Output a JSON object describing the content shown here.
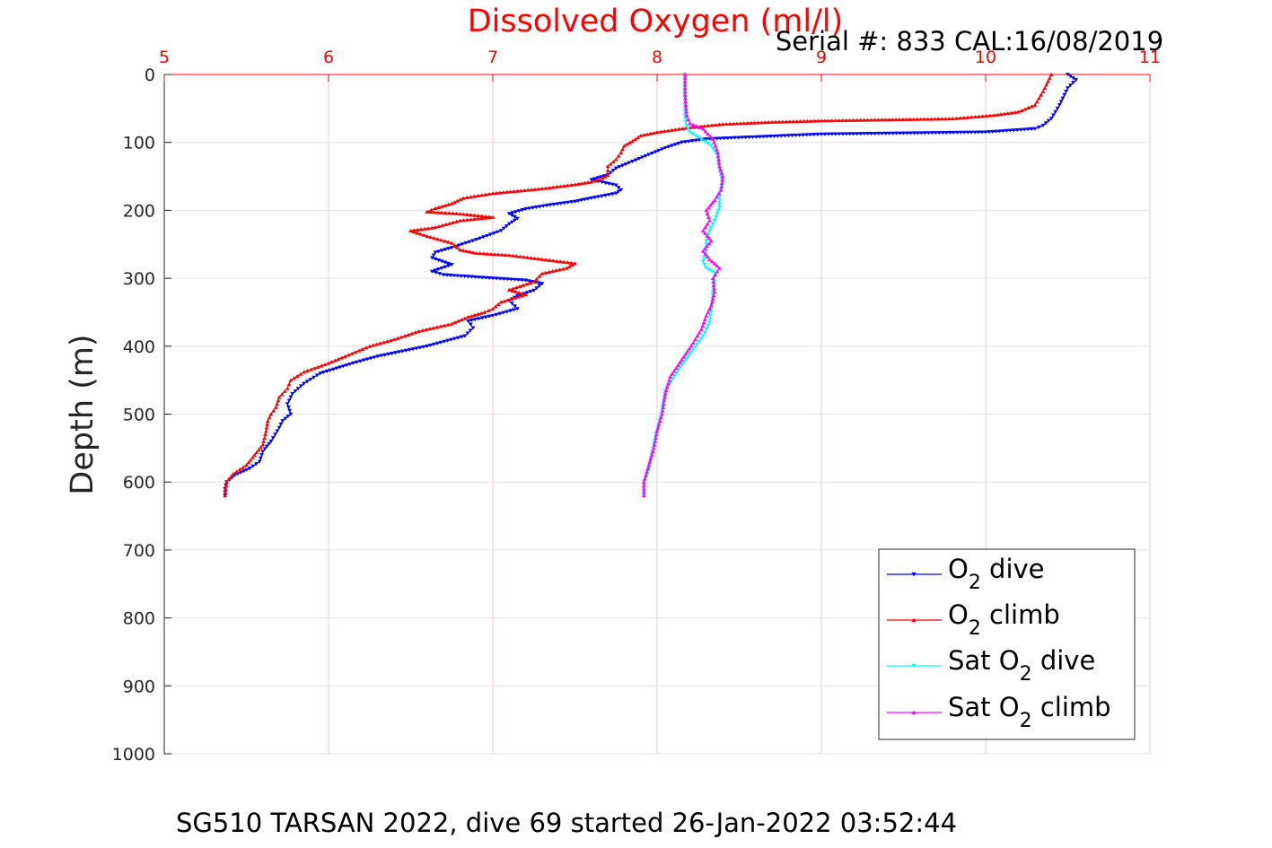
{
  "chart_data": {
    "type": "line",
    "title": "Dissolved Oxygen (ml/l)",
    "serial_note": "Serial #: 833  CAL:16/08/2019",
    "ylabel": "Depth (m)",
    "caption": "SG510 TARSAN 2022, dive 69 started 26-Jan-2022 03:52:44",
    "xlim": [
      5,
      11
    ],
    "ylim": [
      0,
      1000
    ],
    "y_reversed": true,
    "x_axis_position": "top",
    "x_ticks": [
      "5",
      "6",
      "7",
      "8",
      "9",
      "10",
      "11"
    ],
    "y_ticks": [
      "0",
      "100",
      "200",
      "300",
      "400",
      "500",
      "600",
      "700",
      "800",
      "900",
      "1000"
    ],
    "grid": true,
    "legend_position": "bottom-right",
    "series": [
      {
        "name": "O2 dive",
        "legend": {
          "pre": "O",
          "sub": "2",
          "post": " dive"
        },
        "color": "#0000ff",
        "marker": "triangle-down",
        "points": [
          [
            10.5,
            0
          ],
          [
            10.55,
            8
          ],
          [
            10.5,
            20
          ],
          [
            10.45,
            45
          ],
          [
            10.4,
            65
          ],
          [
            10.35,
            75
          ],
          [
            10.3,
            80
          ],
          [
            10.0,
            85
          ],
          [
            9.0,
            88
          ],
          [
            8.8,
            90
          ],
          [
            8.3,
            95
          ],
          [
            8.15,
            100
          ],
          [
            8.05,
            108
          ],
          [
            7.95,
            118
          ],
          [
            7.85,
            128
          ],
          [
            7.75,
            138
          ],
          [
            7.7,
            148
          ],
          [
            7.6,
            155
          ],
          [
            7.75,
            163
          ],
          [
            7.78,
            170
          ],
          [
            7.75,
            175
          ],
          [
            7.6,
            182
          ],
          [
            7.5,
            187
          ],
          [
            7.35,
            192
          ],
          [
            7.2,
            198
          ],
          [
            7.1,
            205
          ],
          [
            7.15,
            212
          ],
          [
            7.1,
            220
          ],
          [
            7.05,
            230
          ],
          [
            6.9,
            243
          ],
          [
            6.75,
            255
          ],
          [
            6.65,
            262
          ],
          [
            6.63,
            270
          ],
          [
            6.75,
            280
          ],
          [
            6.63,
            290
          ],
          [
            6.7,
            295
          ],
          [
            7.0,
            300
          ],
          [
            7.2,
            303
          ],
          [
            7.3,
            308
          ],
          [
            7.25,
            318
          ],
          [
            7.15,
            326
          ],
          [
            7.1,
            333
          ],
          [
            7.15,
            345
          ],
          [
            7.0,
            355
          ],
          [
            6.85,
            363
          ],
          [
            6.88,
            373
          ],
          [
            6.83,
            385
          ],
          [
            6.6,
            400
          ],
          [
            6.3,
            415
          ],
          [
            6.15,
            425
          ],
          [
            5.95,
            440
          ],
          [
            5.85,
            455
          ],
          [
            5.78,
            470
          ],
          [
            5.75,
            485
          ],
          [
            5.77,
            500
          ],
          [
            5.72,
            510
          ],
          [
            5.7,
            520
          ],
          [
            5.65,
            540
          ],
          [
            5.6,
            555
          ],
          [
            5.58,
            570
          ],
          [
            5.52,
            580
          ],
          [
            5.43,
            590
          ],
          [
            5.38,
            600
          ],
          [
            5.37,
            610
          ],
          [
            5.37,
            620
          ]
        ]
      },
      {
        "name": "O2 climb",
        "legend": {
          "pre": "O",
          "sub": "2",
          "post": " climb"
        },
        "color": "#ff0000",
        "marker": "triangle-up",
        "points": [
          [
            10.4,
            0
          ],
          [
            10.38,
            10
          ],
          [
            10.35,
            25
          ],
          [
            10.3,
            45
          ],
          [
            10.2,
            55
          ],
          [
            10.05,
            60
          ],
          [
            9.8,
            65
          ],
          [
            9.0,
            68
          ],
          [
            8.7,
            70
          ],
          [
            8.4,
            73
          ],
          [
            8.2,
            78
          ],
          [
            8.0,
            85
          ],
          [
            7.9,
            90
          ],
          [
            7.85,
            98
          ],
          [
            7.8,
            105
          ],
          [
            7.78,
            115
          ],
          [
            7.75,
            125
          ],
          [
            7.7,
            135
          ],
          [
            7.7,
            148
          ],
          [
            7.65,
            155
          ],
          [
            7.6,
            158
          ],
          [
            7.5,
            162
          ],
          [
            7.3,
            168
          ],
          [
            7.0,
            175
          ],
          [
            6.82,
            182
          ],
          [
            6.75,
            190
          ],
          [
            6.65,
            197
          ],
          [
            6.6,
            202
          ],
          [
            6.8,
            205
          ],
          [
            7.0,
            210
          ],
          [
            6.8,
            215
          ],
          [
            6.65,
            225
          ],
          [
            6.5,
            230
          ],
          [
            6.6,
            238
          ],
          [
            6.75,
            248
          ],
          [
            6.8,
            258
          ],
          [
            6.9,
            263
          ],
          [
            7.1,
            266
          ],
          [
            7.5,
            278
          ],
          [
            7.45,
            285
          ],
          [
            7.3,
            293
          ],
          [
            7.25,
            305
          ],
          [
            7.1,
            317
          ],
          [
            7.2,
            324
          ],
          [
            7.05,
            335
          ],
          [
            7.0,
            345
          ],
          [
            6.95,
            350
          ],
          [
            6.85,
            357
          ],
          [
            6.75,
            367
          ],
          [
            6.55,
            378
          ],
          [
            6.4,
            390
          ],
          [
            6.25,
            400
          ],
          [
            6.1,
            415
          ],
          [
            6.0,
            425
          ],
          [
            5.85,
            438
          ],
          [
            5.77,
            450
          ],
          [
            5.75,
            462
          ],
          [
            5.7,
            475
          ],
          [
            5.68,
            490
          ],
          [
            5.65,
            500
          ],
          [
            5.63,
            510
          ],
          [
            5.62,
            525
          ],
          [
            5.6,
            545
          ],
          [
            5.55,
            560
          ],
          [
            5.5,
            575
          ],
          [
            5.42,
            588
          ],
          [
            5.38,
            600
          ],
          [
            5.37,
            620
          ]
        ]
      },
      {
        "name": "Sat O2 dive",
        "legend": {
          "pre": "Sat O",
          "sub": "2",
          "post": " dive"
        },
        "color": "#00ffff",
        "marker": "triangle-down",
        "points": [
          [
            8.17,
            0
          ],
          [
            8.17,
            30
          ],
          [
            8.17,
            60
          ],
          [
            8.18,
            75
          ],
          [
            8.2,
            85
          ],
          [
            8.27,
            95
          ],
          [
            8.33,
            105
          ],
          [
            8.37,
            120
          ],
          [
            8.38,
            140
          ],
          [
            8.4,
            160
          ],
          [
            8.38,
            175
          ],
          [
            8.38,
            195
          ],
          [
            8.35,
            215
          ],
          [
            8.32,
            230
          ],
          [
            8.3,
            245
          ],
          [
            8.3,
            260
          ],
          [
            8.28,
            275
          ],
          [
            8.3,
            285
          ],
          [
            8.35,
            292
          ],
          [
            8.35,
            305
          ],
          [
            8.34,
            320
          ],
          [
            8.33,
            345
          ],
          [
            8.32,
            365
          ],
          [
            8.28,
            385
          ],
          [
            8.22,
            405
          ],
          [
            8.13,
            435
          ],
          [
            8.05,
            465
          ],
          [
            8.03,
            495
          ],
          [
            7.98,
            545
          ],
          [
            7.95,
            580
          ],
          [
            7.92,
            600
          ],
          [
            7.92,
            620
          ]
        ]
      },
      {
        "name": "Sat O2 climb",
        "legend": {
          "pre": "Sat O",
          "sub": "2",
          "post": " climb"
        },
        "color": "#ff00ff",
        "marker": "triangle-up",
        "points": [
          [
            8.17,
            0
          ],
          [
            8.17,
            30
          ],
          [
            8.18,
            60
          ],
          [
            8.2,
            72
          ],
          [
            8.28,
            80
          ],
          [
            8.34,
            95
          ],
          [
            8.37,
            115
          ],
          [
            8.38,
            135
          ],
          [
            8.4,
            150
          ],
          [
            8.39,
            170
          ],
          [
            8.35,
            185
          ],
          [
            8.3,
            200
          ],
          [
            8.32,
            215
          ],
          [
            8.28,
            230
          ],
          [
            8.33,
            245
          ],
          [
            8.28,
            260
          ],
          [
            8.32,
            272
          ],
          [
            8.38,
            285
          ],
          [
            8.34,
            300
          ],
          [
            8.35,
            320
          ],
          [
            8.33,
            340
          ],
          [
            8.3,
            355
          ],
          [
            8.27,
            375
          ],
          [
            8.22,
            395
          ],
          [
            8.15,
            420
          ],
          [
            8.08,
            445
          ],
          [
            8.05,
            470
          ],
          [
            8.03,
            500
          ],
          [
            8.0,
            525
          ],
          [
            7.98,
            550
          ],
          [
            7.95,
            575
          ],
          [
            7.92,
            600
          ],
          [
            7.92,
            620
          ]
        ]
      }
    ]
  }
}
